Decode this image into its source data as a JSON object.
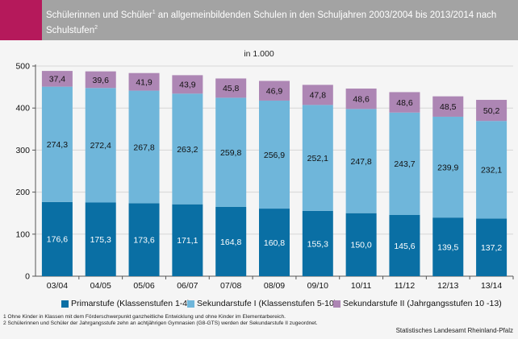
{
  "header": {
    "title_part1": "Schülerinnen und Schüler",
    "title_sup1": "1",
    "title_part2": " an allgemeinbildenden Schulen in den Schuljahren 2003/2004 bis 2013/2014 nach Schulstufen",
    "title_sup2": "2"
  },
  "unit_label": "in 1.000",
  "chart_data": {
    "type": "bar",
    "stacked": true,
    "categories": [
      "03/04",
      "04/05",
      "05/06",
      "06/07",
      "07/08",
      "08/09",
      "09/10",
      "10/11",
      "11/12",
      "12/13",
      "13/14"
    ],
    "value_labels": {
      "Primarstufe (Klassenstufen 1-4)": [
        "176,6",
        "175,3",
        "173,6",
        "171,1",
        "164,8",
        "160,8",
        "155,3",
        "150,0",
        "145,6",
        "139,5",
        "137,2"
      ],
      "Sekundarstufe I (Klassenstufen 5-10)": [
        "274,3",
        "272,4",
        "267,8",
        "263,2",
        "259,8",
        "256,9",
        "252,1",
        "247,8",
        "243,7",
        "239,9",
        "232,1"
      ],
      "Sekundarstufe II (Jahrgangsstufen 10 -13)": [
        "37,4",
        "39,6",
        "41,9",
        "43,9",
        "45,8",
        "46,9",
        "47,8",
        "48,6",
        "48,6",
        "48,5",
        "50,2"
      ]
    },
    "series": [
      {
        "name": "Primarstufe (Klassenstufen 1-4)",
        "color": "#0a6fa4",
        "label_color": "#ffffff",
        "values": [
          176.6,
          175.3,
          173.6,
          171.1,
          164.8,
          160.8,
          155.3,
          150.0,
          145.6,
          139.5,
          137.2
        ]
      },
      {
        "name": "Sekundarstufe I (Klassenstufen 5-10)",
        "color": "#6fb6da",
        "label_color": "#111111",
        "values": [
          274.3,
          272.4,
          267.8,
          263.2,
          259.8,
          256.9,
          252.1,
          247.8,
          243.7,
          239.9,
          232.1
        ]
      },
      {
        "name": "Sekundarstufe II (Jahrgangsstufen 10 -13)",
        "color": "#ad86b4",
        "label_color": "#111111",
        "values": [
          37.4,
          39.6,
          41.9,
          43.9,
          45.8,
          46.9,
          47.8,
          48.6,
          48.6,
          48.5,
          50.2
        ]
      }
    ],
    "ylim": [
      0,
      500
    ],
    "yticks": [
      "0",
      "100",
      "200",
      "300",
      "400",
      "500"
    ],
    "grid": true,
    "legend_position": "bottom"
  },
  "footnotes": [
    "1 Ohne Kinder in Klassen mit dem Förderschwerpunkt ganzheitliche Entwicklung und ohne Kinder im Elementarbereich.",
    "2 Schülerinnen und Schüler der Jahrgangsstufe zehn an achtjährigen Gymnasien (G8-GTS) werden der Sekundarstufe II zugeordnet."
  ],
  "source": "Statistisches Landesamt Rheinland-Pfalz"
}
